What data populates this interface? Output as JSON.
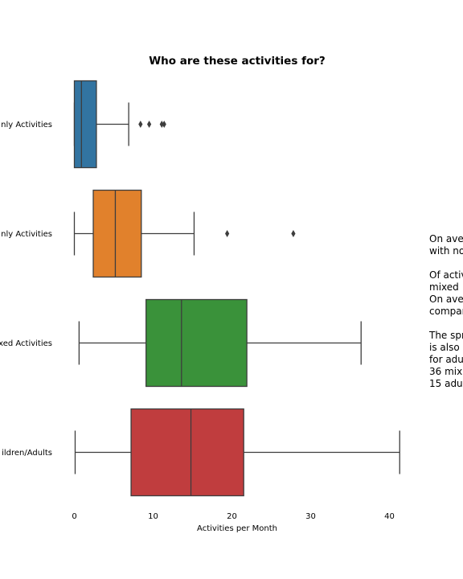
{
  "chart_data": {
    "type": "boxplot",
    "title": "Who are these activities for?",
    "xlabel": "Activities per Month",
    "ylabel": "",
    "xlim": [
      0,
      42
    ],
    "xticks": [
      0,
      10,
      20,
      30,
      40
    ],
    "grid": false,
    "categories": [
      "nly Activities",
      "nly Activities",
      "xed Activities",
      "ildren/Adults"
    ],
    "series": [
      {
        "color": "#3274a1",
        "min": 0,
        "q1": 0,
        "median": 0.9,
        "q3": 2.8,
        "max": 6.9,
        "outliers": [
          8.4,
          9.5,
          11.1,
          11.4
        ]
      },
      {
        "color": "#e1812c",
        "min": 0,
        "q1": 2.4,
        "median": 5.2,
        "q3": 8.5,
        "max": 15.2,
        "outliers": [
          19.4,
          27.8
        ]
      },
      {
        "color": "#3a923a",
        "min": 0.6,
        "q1": 9.1,
        "median": 13.6,
        "q3": 21.9,
        "max": 36.4,
        "outliers": []
      },
      {
        "color": "#c03d3e",
        "min": 0.1,
        "q1": 7.2,
        "median": 14.8,
        "q3": 21.5,
        "max": 41.3,
        "outliers": []
      }
    ]
  },
  "annotation": "On ave\nwith no\n\nOf activ\nmixed\nOn ave\ncompar\n\nThe spr\nis also\nfor adu\n36 mix\n15 adu"
}
